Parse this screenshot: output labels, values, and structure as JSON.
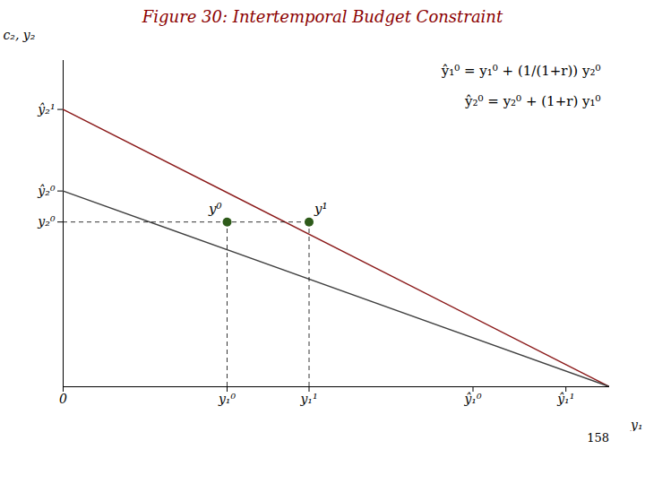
{
  "chart_data": {
    "type": "line",
    "title": "Figure 30: Intertemporal Budget Constraint",
    "x_label": "y₁",
    "y_label": "c₂, y₂",
    "xlim": [
      0,
      10
    ],
    "ylim": [
      0,
      10
    ],
    "xticks": [
      0,
      {
        "value": 3.0,
        "label": "y₁⁰"
      },
      {
        "value": 4.5,
        "label": "y₁¹"
      },
      {
        "value": 7.5,
        "label": "ŷ₁⁰"
      },
      {
        "value": 9.2,
        "label": "ŷ₁¹"
      }
    ],
    "yticks": [
      {
        "value": 8.5,
        "label": "ŷ₂¹"
      },
      {
        "value": 6.0,
        "label": "ŷ₂⁰"
      },
      {
        "value": 5.05,
        "label": "y₂⁰"
      }
    ],
    "series": [
      {
        "type": "line",
        "color": "#8B1A1A",
        "x": [
          0,
          10
        ],
        "values": [
          8.5,
          0.0
        ]
      },
      {
        "type": "line",
        "color": "#404040",
        "x": [
          0,
          10
        ],
        "values": [
          6.0,
          0.0
        ]
      },
      {
        "type": "scatter",
        "color": "#2E5B1A",
        "x": [
          3.0,
          4.5
        ],
        "values": [
          5.05,
          5.05
        ],
        "labels": [
          "y⁰",
          "y¹"
        ]
      }
    ],
    "annotations": [
      "ŷ₁⁰ = y₁⁰ + (1/(1+r)) y₂⁰",
      "ŷ₂⁰ = y₂⁰ + (1+r) y₁⁰"
    ],
    "caption": "158"
  }
}
